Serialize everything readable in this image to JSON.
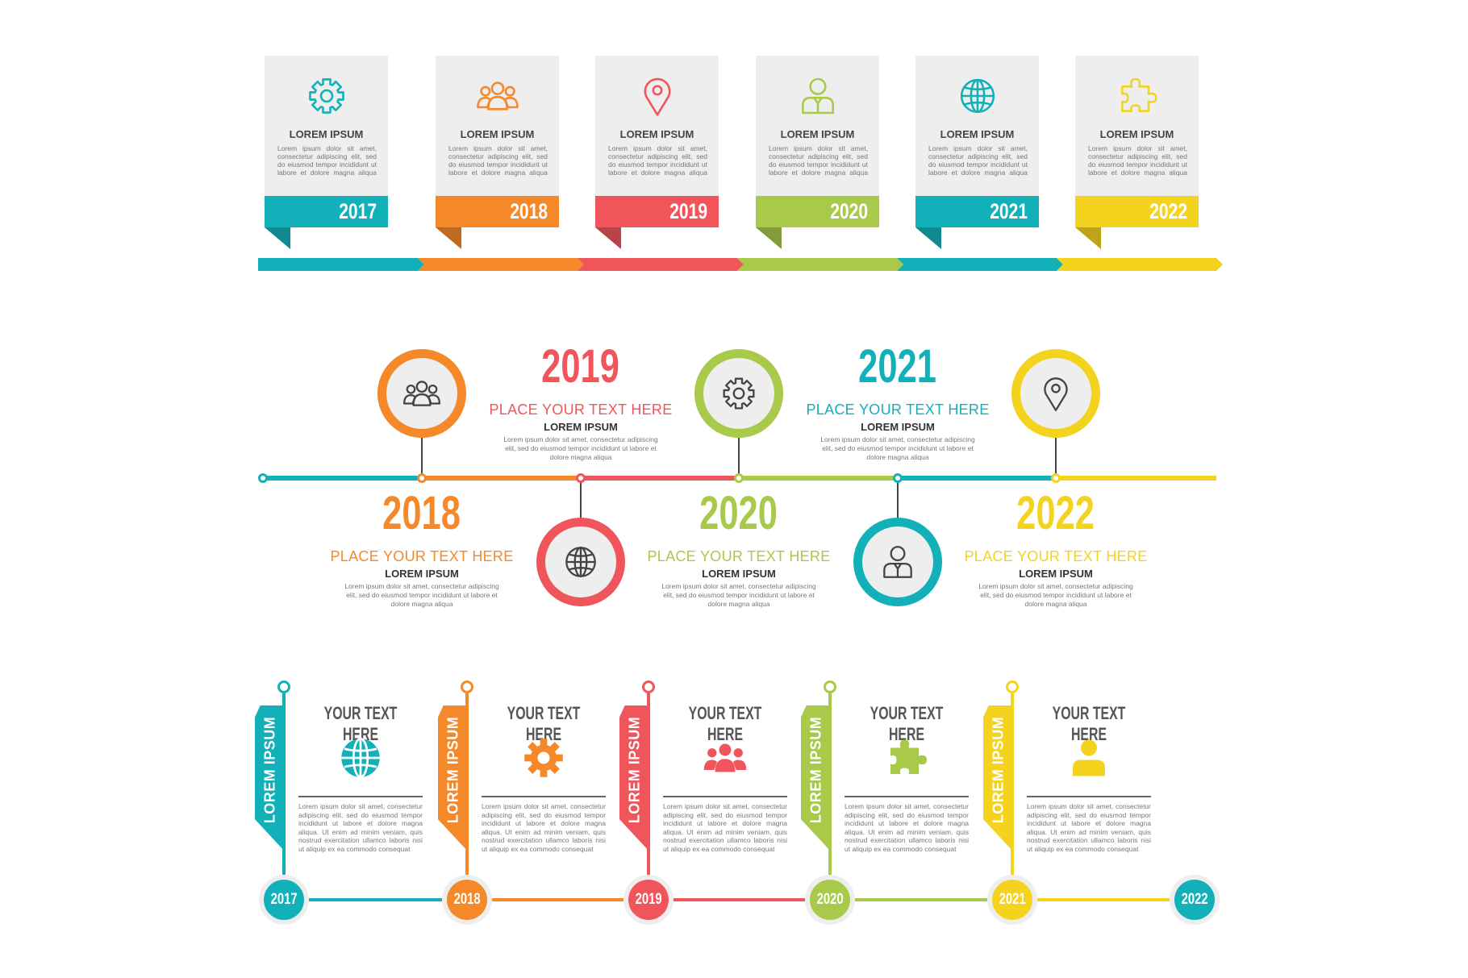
{
  "colors": {
    "teal": "#12b1b9",
    "orange": "#f5892a",
    "red": "#f0555c",
    "green": "#a8c94a",
    "yellow": "#f4d31f",
    "gray": "#eeeeee"
  },
  "top_timeline": [
    {
      "year": "2017",
      "title": "LOREM IPSUM",
      "body": "Lorem ipsum dolor sit amet, consectetur adipiscing elit, sed do eiusmod tempor incididunt ut labore et dolore magna aliqua",
      "icon": "gear-icon",
      "color": "#12b1b9"
    },
    {
      "year": "2018",
      "title": "LOREM IPSUM",
      "body": "Lorem ipsum dolor sit amet, consectetur adipiscing elit, sed do eiusmod tempor incididunt ut labore et dolore magna aliqua",
      "icon": "people-icon",
      "color": "#f5892a"
    },
    {
      "year": "2019",
      "title": "LOREM IPSUM",
      "body": "Lorem ipsum dolor sit amet, consectetur adipiscing elit, sed do eiusmod tempor incididunt ut labore et dolore magna aliqua",
      "icon": "location-pin-icon",
      "color": "#f0555c"
    },
    {
      "year": "2020",
      "title": "LOREM IPSUM",
      "body": "Lorem ipsum dolor sit amet, consectetur adipiscing elit, sed do eiusmod tempor incididunt ut labore et dolore magna aliqua",
      "icon": "user-icon",
      "color": "#a8c94a"
    },
    {
      "year": "2021",
      "title": "LOREM IPSUM",
      "body": "Lorem ipsum dolor sit amet, consectetur adipiscing elit, sed do eiusmod tempor incididunt ut labore et dolore magna aliqua",
      "icon": "globe-icon",
      "color": "#12b1b9"
    },
    {
      "year": "2022",
      "title": "LOREM IPSUM",
      "body": "Lorem ipsum dolor sit amet, consectetur adipiscing elit, sed do eiusmod tempor incididunt ut labore et dolore magna aliqua",
      "icon": "puzzle-icon",
      "color": "#f4d31f"
    }
  ],
  "middle_timeline": [
    {
      "year": "2018",
      "heading": "PLACE YOUR TEXT HERE",
      "title": "LOREM IPSUM",
      "body": "Lorem ipsum dolor sit amet, consectetur adipiscing elit, sed do eiusmod tempor incididunt ut labore et dolore magna aliqua",
      "icon": "people-icon",
      "color": "#f5892a",
      "circle": "above"
    },
    {
      "year": "2019",
      "heading": "PLACE YOUR TEXT HERE",
      "title": "LOREM IPSUM",
      "body": "Lorem ipsum dolor sit amet, consectetur adipiscing elit, sed do eiusmod tempor incididunt ut labore et dolore magna aliqua",
      "icon": "globe-icon",
      "color": "#f0555c",
      "circle": "below"
    },
    {
      "year": "2020",
      "heading": "PLACE YOUR TEXT HERE",
      "title": "LOREM IPSUM",
      "body": "Lorem ipsum dolor sit amet, consectetur adipiscing elit, sed do eiusmod tempor incididunt ut labore et dolore magna aliqua",
      "icon": "gear-icon",
      "color": "#a8c94a",
      "circle": "above"
    },
    {
      "year": "2021",
      "heading": "PLACE YOUR TEXT HERE",
      "title": "LOREM IPSUM",
      "body": "Lorem ipsum dolor sit amet, consectetur adipiscing elit, sed do eiusmod tempor incididunt ut labore et dolore magna aliqua",
      "icon": "user-icon",
      "color": "#12b1b9",
      "circle": "below"
    },
    {
      "year": "2022",
      "heading": "PLACE YOUR TEXT HERE",
      "title": "LOREM IPSUM",
      "body": "Lorem ipsum dolor sit amet, consectetur adipiscing elit, sed do eiusmod tempor incididunt ut labore et dolore magna aliqua",
      "icon": "location-pin-icon",
      "color": "#f4d31f",
      "circle": "above"
    }
  ],
  "bottom_timeline": {
    "items": [
      {
        "year": "2017",
        "tab": "LOREM IPSUM",
        "title": "YOUR TEXT HERE",
        "body": "Lorem ipsum dolor sit amet, consectetur adipiscing elit, sed do eiusmod tempor incididunt ut labore et dolore magna aliqua. Ut enim ad minim veniam, quis nostrud exercitation ullamco laboris nisi ut aliquip ex ea commodo consequat",
        "icon": "globe-icon",
        "color": "#12b1b9"
      },
      {
        "year": "2018",
        "tab": "LOREM IPSUM",
        "title": "YOUR TEXT HERE",
        "body": "Lorem ipsum dolor sit amet, consectetur adipiscing elit, sed do eiusmod tempor incididunt ut labore et dolore magna aliqua. Ut enim ad minim veniam, quis nostrud exercitation ullamco laboris nisi ut aliquip ex ea commodo consequat",
        "icon": "gear-icon",
        "color": "#f5892a"
      },
      {
        "year": "2019",
        "tab": "LOREM IPSUM",
        "title": "YOUR TEXT HERE",
        "body": "Lorem ipsum dolor sit amet, consectetur adipiscing elit, sed do eiusmod tempor incididunt ut labore et dolore magna aliqua. Ut enim ad minim veniam, quis nostrud exercitation ullamco laboris nisi ut aliquip ex ea commodo consequat",
        "icon": "people-icon",
        "color": "#f0555c"
      },
      {
        "year": "2020",
        "tab": "LOREM IPSUM",
        "title": "YOUR TEXT HERE",
        "body": "Lorem ipsum dolor sit amet, consectetur adipiscing elit, sed do eiusmod tempor incididunt ut labore et dolore magna aliqua. Ut enim ad minim veniam, quis nostrud exercitation ullamco laboris nisi ut aliquip ex ea commodo consequat",
        "icon": "puzzle-icon",
        "color": "#a8c94a"
      },
      {
        "year": "2021",
        "tab": "LOREM IPSUM",
        "title": "YOUR TEXT HERE",
        "body": "Lorem ipsum dolor sit amet, consectetur adipiscing elit, sed do eiusmod tempor incididunt ut labore et dolore magna aliqua. Ut enim ad minim veniam, quis nostrud exercitation ullamco laboris nisi ut aliquip ex ea commodo consequat",
        "icon": "user-icon",
        "color": "#f4d31f"
      }
    ],
    "final": {
      "year": "2022",
      "color": "#12b1b9"
    }
  }
}
